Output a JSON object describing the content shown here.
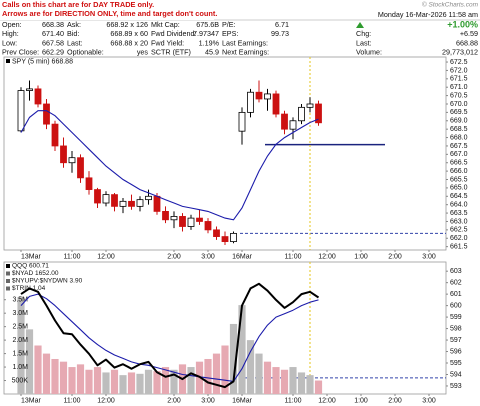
{
  "header": {
    "notes": [
      "Calls on this chart are for DAY TRADE only.",
      "Arrows are for DIRECTION ONLY, time and target don't count."
    ],
    "watermark": "© StockCharts.com",
    "date": "Monday 16-Mar-2026 11:58 am",
    "quote_rows": [
      [
        "Open:",
        "668.38",
        "Ask:",
        "668.92 x 126",
        "Mkt Cap:",
        "675.6B",
        "P/E:",
        "6.71"
      ],
      [
        "High:",
        "671.40",
        "Bid:",
        "668.89 x 60",
        "Fwd Dividend:",
        "7.97347",
        "EPS:",
        "99.73"
      ],
      [
        "Low:",
        "667.58",
        "Last:",
        "668.88 x 20",
        "Fwd Yield:",
        "1.19%",
        "Last Earnings:",
        "-"
      ],
      [
        "Prev Close:",
        "662.29",
        "Optionable:",
        "yes",
        "SCTR (ETF)",
        "45.9",
        "Next Earnings:",
        "-"
      ]
    ],
    "change_pct": "+1.00%",
    "summary": [
      [
        "Chg:",
        "+6.59"
      ],
      [
        "Last:",
        "668.88"
      ],
      [
        "Volume:",
        "29,773,012"
      ]
    ]
  },
  "chart_data": [
    {
      "type": "candlestick",
      "title": "SPY (5 min) 668.88",
      "x": [
        0,
        3,
        6,
        9,
        12,
        15,
        18,
        21,
        24,
        27,
        30,
        33,
        36,
        39,
        42,
        45,
        48,
        51,
        54,
        57,
        60,
        63,
        66,
        69,
        72,
        75,
        78,
        81,
        84,
        87,
        90,
        93,
        96,
        99,
        102,
        105
      ],
      "open": [
        668.4,
        670.8,
        670.9,
        670.0,
        668.8,
        667.5,
        666.5,
        666.8,
        665.6,
        664.9,
        664.1,
        664.6,
        663.9,
        664.2,
        663.9,
        664.3,
        664.5,
        663.6,
        663.1,
        663.3,
        662.7,
        663.2,
        663.0,
        662.5,
        662.1,
        661.8,
        668.38,
        669.5,
        670.7,
        670.3,
        670.6,
        669.4,
        668.5,
        669.0,
        669.8,
        670.0
      ],
      "high": [
        671.0,
        671.4,
        671.1,
        670.3,
        669.0,
        668.0,
        667.2,
        667.0,
        666.0,
        665.0,
        664.8,
        664.7,
        664.4,
        664.6,
        664.5,
        664.9,
        664.7,
        663.9,
        663.6,
        663.5,
        663.4,
        663.7,
        663.2,
        662.7,
        662.4,
        662.4,
        669.8,
        670.9,
        671.4,
        670.9,
        670.8,
        669.6,
        669.2,
        670.0,
        670.4,
        670.2
      ],
      "low": [
        668.3,
        670.2,
        669.8,
        668.5,
        667.2,
        666.2,
        665.9,
        665.3,
        664.6,
        663.8,
        663.9,
        663.6,
        663.5,
        663.7,
        663.6,
        664.0,
        663.4,
        662.9,
        662.6,
        662.4,
        662.5,
        662.8,
        662.3,
        661.9,
        661.6,
        661.7,
        667.58,
        669.2,
        670.1,
        669.6,
        669.2,
        668.2,
        667.9,
        668.8,
        669.5,
        668.7
      ],
      "close": [
        670.8,
        670.9,
        670.0,
        668.8,
        667.5,
        666.5,
        666.8,
        665.6,
        664.9,
        664.1,
        664.6,
        663.9,
        664.2,
        663.9,
        664.3,
        664.5,
        663.6,
        663.1,
        663.3,
        662.7,
        663.2,
        663.0,
        662.5,
        662.1,
        661.8,
        662.29,
        669.5,
        670.7,
        670.3,
        670.6,
        669.4,
        668.5,
        669.0,
        669.8,
        670.0,
        668.88
      ],
      "up_color": "#000000",
      "down_color": "#cc1111",
      "overlays": [
        {
          "color": "#1c1cab",
          "values": [
            668.3,
            669.2,
            669.6,
            669.6,
            669.3,
            668.8,
            668.3,
            667.8,
            667.3,
            666.8,
            666.3,
            665.9,
            665.5,
            665.2,
            664.9,
            664.7,
            664.5,
            664.3,
            664.1,
            663.9,
            663.8,
            663.7,
            663.6,
            663.4,
            663.2,
            663.1,
            663.8,
            664.9,
            666.0,
            666.9,
            667.6,
            668.0,
            668.3,
            668.6,
            668.9,
            669.1
          ]
        }
      ],
      "hlines": [
        667.58,
        662.29
      ],
      "vline": 102,
      "xlim": [
        -6,
        150
      ],
      "xticks": [
        {
          "value": 0,
          "label": "13Mar"
        },
        {
          "value": 18,
          "label": "11:00"
        },
        {
          "value": 30,
          "label": "12:00"
        },
        {
          "value": 54,
          "label": "2:00"
        },
        {
          "value": 66,
          "label": "3:00"
        },
        {
          "value": 78,
          "label": "16Mar"
        },
        {
          "value": 96,
          "label": "11:00"
        },
        {
          "value": 108,
          "label": "12:00"
        },
        {
          "value": 120,
          "label": "1:00"
        },
        {
          "value": 132,
          "label": "2:00"
        },
        {
          "value": 144,
          "label": "3:00"
        }
      ],
      "ylim": [
        661.3,
        672.8
      ],
      "yticks": [
        672.5,
        {
          "value": 672,
          "label": "672.0"
        },
        671.5,
        {
          "value": 671,
          "label": "671.0"
        },
        670.5,
        {
          "value": 670,
          "label": "670.0"
        },
        669.5,
        {
          "value": 669,
          "label": "669.0"
        },
        668.5,
        {
          "value": 668,
          "label": "668.0"
        },
        667.5,
        {
          "value": 667,
          "label": "667.0"
        },
        666.5,
        {
          "value": 666,
          "label": "666.0"
        },
        665.5,
        {
          "value": 665,
          "label": "665.0"
        },
        664.5,
        {
          "value": 664,
          "label": "664.0"
        },
        663.5,
        {
          "value": 663,
          "label": "663.0"
        },
        662.5,
        {
          "value": 662,
          "label": "662.0"
        },
        661.5
      ]
    },
    {
      "type": "line",
      "legend": [
        "QQQ 600.71",
        "$NYAD 1652.00",
        "$NYUPV:$NYDWN 3.90",
        "$TRIN 1.04"
      ],
      "x": [
        0,
        3,
        6,
        9,
        12,
        15,
        18,
        21,
        24,
        27,
        30,
        33,
        36,
        39,
        42,
        45,
        48,
        51,
        54,
        57,
        60,
        63,
        66,
        69,
        72,
        75,
        78,
        81,
        84,
        87,
        90,
        93,
        96,
        99,
        102,
        105
      ],
      "series": [
        {
          "color": "#000000",
          "values": [
            601.0,
            601.5,
            601.2,
            600.0,
            598.7,
            597.6,
            597.5,
            596.6,
            595.8,
            594.8,
            595.3,
            594.6,
            594.9,
            594.5,
            594.9,
            595.1,
            594.2,
            593.8,
            594.0,
            593.6,
            594.1,
            593.8,
            593.3,
            593.1,
            592.9,
            593.4,
            600.0,
            601.5,
            601.9,
            601.3,
            600.5,
            599.8,
            600.3,
            601.0,
            601.2,
            600.71
          ]
        },
        {
          "color": "#1c1cab",
          "values": [
            600.0,
            600.8,
            601.0,
            600.6,
            600.0,
            599.3,
            598.6,
            597.9,
            597.2,
            596.6,
            596.1,
            595.7,
            595.4,
            595.1,
            594.9,
            594.8,
            594.6,
            594.4,
            594.2,
            594.0,
            593.9,
            593.8,
            593.7,
            593.6,
            593.5,
            593.4,
            594.5,
            596.0,
            597.3,
            598.3,
            599.0,
            599.3,
            599.6,
            600.0,
            600.3,
            600.5
          ]
        }
      ],
      "volume": {
        "axis": "y2",
        "up_color": "#bdbdbd",
        "down_color": "#e6a9b2",
        "values": [
          3600000,
          2400000,
          1800000,
          1500000,
          1300000,
          1200000,
          1000000,
          1100000,
          900000,
          1000000,
          800000,
          900000,
          700000,
          800000,
          750000,
          900000,
          850000,
          1000000,
          900000,
          1100000,
          1000000,
          1200000,
          1300000,
          1500000,
          1800000,
          2600000,
          3300000,
          2000000,
          1500000,
          1200000,
          1000000,
          900000,
          1000000,
          800000,
          700000,
          500000
        ]
      },
      "hlines": [
        593.7
      ],
      "vline": 102,
      "xlim": [
        -6,
        150
      ],
      "xticks": [
        {
          "value": 0,
          "label": "13Mar"
        },
        {
          "value": 18,
          "label": "11:00"
        },
        {
          "value": 30,
          "label": "12:00"
        },
        {
          "value": 54,
          "label": "2:00"
        },
        {
          "value": 66,
          "label": "3:00"
        },
        {
          "value": 78,
          "label": "16Mar"
        },
        {
          "value": 96,
          "label": "11:00"
        },
        {
          "value": 108,
          "label": "12:00"
        },
        {
          "value": 120,
          "label": "1:00"
        },
        {
          "value": 132,
          "label": "2:00"
        },
        {
          "value": 144,
          "label": "3:00"
        }
      ],
      "ylim": [
        592.3,
        603.8
      ],
      "yticks": [
        603,
        602,
        601,
        600,
        599,
        598,
        597,
        596,
        595,
        594,
        593
      ],
      "y2lim": [
        0,
        4900000
      ],
      "y2ticks": [
        {
          "value": 3500000,
          "label": "3.5M"
        },
        {
          "value": 3000000,
          "label": "3.0M"
        },
        {
          "value": 2500000,
          "label": "2.5M"
        },
        {
          "value": 2000000,
          "label": "2.0M"
        },
        {
          "value": 1500000,
          "label": "1.5M"
        },
        {
          "value": 1000000,
          "label": "1.0M"
        },
        {
          "value": 500000,
          "label": "500K"
        }
      ]
    }
  ]
}
